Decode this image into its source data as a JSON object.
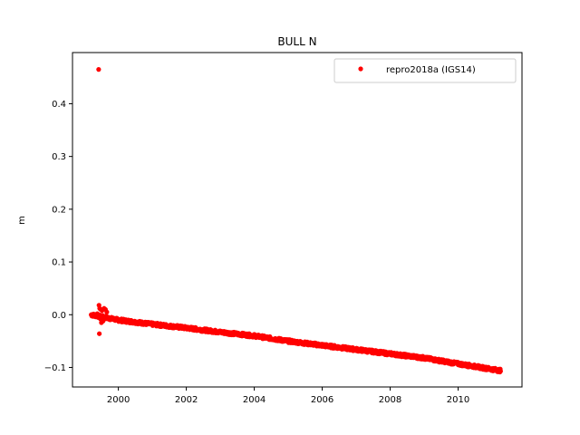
{
  "chart_data": {
    "type": "scatter",
    "title": "BULL N",
    "xlabel": "",
    "ylabel": "m",
    "xlim": [
      1998.65,
      2011.88
    ],
    "ylim": [
      -0.137,
      0.497
    ],
    "xticks": [
      2000,
      2002,
      2004,
      2006,
      2008,
      2010
    ],
    "yticks": [
      -0.1,
      0.0,
      0.1,
      0.2,
      0.3,
      0.4
    ],
    "ytick_labels": [
      "−0.1",
      "0.0",
      "0.1",
      "0.2",
      "0.3",
      "0.4"
    ],
    "grid": false,
    "legend": {
      "position": "top-right",
      "entries": [
        "repro2018a (IGS14)"
      ]
    },
    "series": [
      {
        "name": "repro2018a (IGS14)",
        "color": "#ff0000",
        "marker": "dot",
        "trend": {
          "start": [
            1999.2,
            0.0
          ],
          "knots": [
            [
              1999.2,
              0.0
            ],
            [
              2000.0,
              -0.01
            ],
            [
              2001.0,
              -0.018
            ],
            [
              2002.0,
              -0.025
            ],
            [
              2003.0,
              -0.033
            ],
            [
              2004.0,
              -0.04
            ],
            [
              2005.0,
              -0.05
            ],
            [
              2006.0,
              -0.058
            ],
            [
              2007.0,
              -0.066
            ],
            [
              2008.0,
              -0.074
            ],
            [
              2009.0,
              -0.082
            ],
            [
              2010.0,
              -0.093
            ],
            [
              2011.25,
              -0.106
            ]
          ],
          "step": 0.01,
          "noise": 0.003
        },
        "outliers": [
          [
            1999.42,
            0.465
          ],
          [
            1999.43,
            0.018
          ],
          [
            1999.45,
            0.012
          ],
          [
            1999.48,
            0.01
          ],
          [
            1999.52,
            0.008
          ],
          [
            1999.58,
            0.012
          ],
          [
            1999.62,
            0.01
          ],
          [
            1999.66,
            0.005
          ],
          [
            1999.47,
            -0.008
          ],
          [
            1999.5,
            -0.015
          ],
          [
            1999.55,
            -0.012
          ],
          [
            1999.44,
            -0.036
          ],
          [
            1999.6,
            -0.005
          ],
          [
            1999.38,
            0.002
          ]
        ]
      }
    ]
  }
}
